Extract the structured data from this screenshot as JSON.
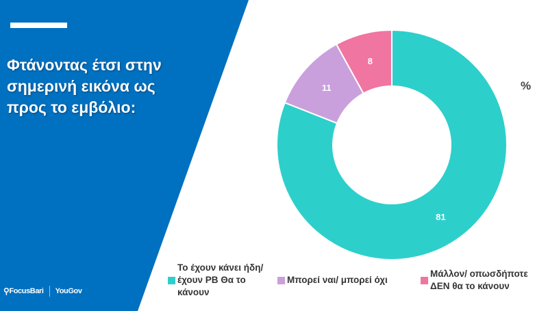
{
  "slide": {
    "title": "Φτάνοντας έτσι στην σημερινή εικόνα ως προς το εμβόλιο:",
    "brand_color": "#0070C0",
    "logos": {
      "focusbari": "FocusBari",
      "yougov": "YouGov"
    }
  },
  "chart_data": {
    "type": "pie",
    "variant": "donut",
    "unit_label": "%",
    "start": "top",
    "direction": "clockwise",
    "slices": [
      {
        "label": "Το έχουν κάνει ήδη/έχουν PB Θα το κάνουν",
        "value": 81,
        "color": "#2DCFCB"
      },
      {
        "label": "Μπορεί ναι/ μπορεί όχι",
        "value": 11,
        "color": "#C9A0DC"
      },
      {
        "label": "Μάλλον/ οπωσδήποτε ΔΕΝ θα το κάνουν",
        "value": 8,
        "color": "#F075A0"
      }
    ],
    "legend_placement": "bottom"
  }
}
